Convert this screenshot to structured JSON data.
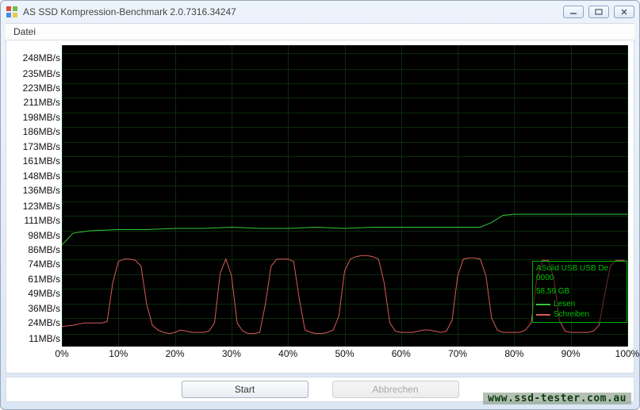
{
  "window": {
    "title": "AS SSD Kompression-Benchmark 2.0.7316.34247",
    "icon_colors": {
      "tl": "#d94a3a",
      "tr": "#6fbf4a",
      "bl": "#4a8fd9",
      "br": "#e8c94a"
    }
  },
  "menu": {
    "file": "Datei"
  },
  "buttons": {
    "start": "Start",
    "cancel": "Abbrechen"
  },
  "watermark": "www.ssd-tester.com.au",
  "chart": {
    "background_color": "#000000",
    "grid_color": "#0b2b0b",
    "y_axis": {
      "unit": "MB/s",
      "ticks": [
        11,
        24,
        36,
        49,
        61,
        74,
        86,
        98,
        111,
        123,
        136,
        148,
        161,
        173,
        186,
        198,
        211,
        223,
        235,
        248
      ],
      "min": 0,
      "max": 255,
      "label_fontsize": 12
    },
    "x_axis": {
      "ticks": [
        0,
        10,
        20,
        30,
        40,
        50,
        60,
        70,
        80,
        90,
        100
      ],
      "min": 0,
      "max": 100,
      "suffix": "%",
      "label_fontsize": 12
    },
    "series": {
      "read": {
        "label": "Lesen",
        "color": "#36c636",
        "line_width": 1,
        "points": [
          [
            0,
            86
          ],
          [
            2,
            96
          ],
          [
            5,
            98
          ],
          [
            10,
            99
          ],
          [
            15,
            99
          ],
          [
            20,
            100
          ],
          [
            25,
            100
          ],
          [
            30,
            101
          ],
          [
            35,
            100
          ],
          [
            40,
            100
          ],
          [
            45,
            101
          ],
          [
            50,
            100
          ],
          [
            55,
            101
          ],
          [
            60,
            101
          ],
          [
            65,
            101
          ],
          [
            70,
            101
          ],
          [
            74,
            101
          ],
          [
            76,
            105
          ],
          [
            78,
            111
          ],
          [
            80,
            112
          ],
          [
            85,
            112
          ],
          [
            90,
            112
          ],
          [
            95,
            112
          ],
          [
            100,
            112
          ]
        ]
      },
      "write": {
        "label": "Schreiben",
        "color": "#d85a5a",
        "line_width": 1,
        "points": [
          [
            0,
            17
          ],
          [
            2,
            18
          ],
          [
            4,
            20
          ],
          [
            5,
            20
          ],
          [
            6,
            20
          ],
          [
            7,
            20
          ],
          [
            8,
            21
          ],
          [
            9,
            54
          ],
          [
            10,
            72
          ],
          [
            11,
            74
          ],
          [
            12,
            74
          ],
          [
            13,
            73
          ],
          [
            14,
            68
          ],
          [
            15,
            36
          ],
          [
            16,
            18
          ],
          [
            17,
            14
          ],
          [
            18,
            12
          ],
          [
            19,
            11
          ],
          [
            20,
            12
          ],
          [
            21,
            14
          ],
          [
            22,
            13
          ],
          [
            23,
            12
          ],
          [
            24,
            12
          ],
          [
            25,
            12
          ],
          [
            26,
            13
          ],
          [
            27,
            20
          ],
          [
            28,
            62
          ],
          [
            29,
            74
          ],
          [
            30,
            60
          ],
          [
            31,
            20
          ],
          [
            32,
            13
          ],
          [
            33,
            11
          ],
          [
            34,
            11
          ],
          [
            35,
            12
          ],
          [
            36,
            36
          ],
          [
            37,
            68
          ],
          [
            38,
            74
          ],
          [
            39,
            74
          ],
          [
            40,
            74
          ],
          [
            41,
            72
          ],
          [
            42,
            40
          ],
          [
            43,
            14
          ],
          [
            44,
            12
          ],
          [
            45,
            11
          ],
          [
            46,
            11
          ],
          [
            47,
            12
          ],
          [
            48,
            14
          ],
          [
            49,
            26
          ],
          [
            50,
            64
          ],
          [
            51,
            74
          ],
          [
            52,
            76
          ],
          [
            53,
            77
          ],
          [
            54,
            77
          ],
          [
            55,
            76
          ],
          [
            56,
            74
          ],
          [
            57,
            54
          ],
          [
            58,
            20
          ],
          [
            59,
            13
          ],
          [
            60,
            12
          ],
          [
            61,
            12
          ],
          [
            62,
            12
          ],
          [
            63,
            13
          ],
          [
            64,
            14
          ],
          [
            65,
            14
          ],
          [
            66,
            13
          ],
          [
            67,
            12
          ],
          [
            68,
            13
          ],
          [
            69,
            22
          ],
          [
            70,
            60
          ],
          [
            71,
            74
          ],
          [
            72,
            75
          ],
          [
            73,
            75
          ],
          [
            74,
            74
          ],
          [
            75,
            60
          ],
          [
            76,
            24
          ],
          [
            77,
            14
          ],
          [
            78,
            12
          ],
          [
            79,
            12
          ],
          [
            80,
            12
          ],
          [
            81,
            12
          ],
          [
            82,
            14
          ],
          [
            83,
            20
          ],
          [
            84,
            58
          ],
          [
            85,
            73
          ],
          [
            86,
            73
          ],
          [
            87,
            58
          ],
          [
            88,
            22
          ],
          [
            89,
            13
          ],
          [
            90,
            12
          ],
          [
            91,
            12
          ],
          [
            92,
            12
          ],
          [
            93,
            12
          ],
          [
            94,
            13
          ],
          [
            95,
            18
          ],
          [
            96,
            44
          ],
          [
            97,
            68
          ],
          [
            98,
            73
          ],
          [
            99,
            73
          ],
          [
            100,
            72
          ]
        ]
      }
    },
    "legend": {
      "border_color": "#00b000",
      "text_color": "#00c000",
      "device_line1": "ASolid USB USB De",
      "device_line2": "0000",
      "size": "58,59 GB"
    }
  }
}
